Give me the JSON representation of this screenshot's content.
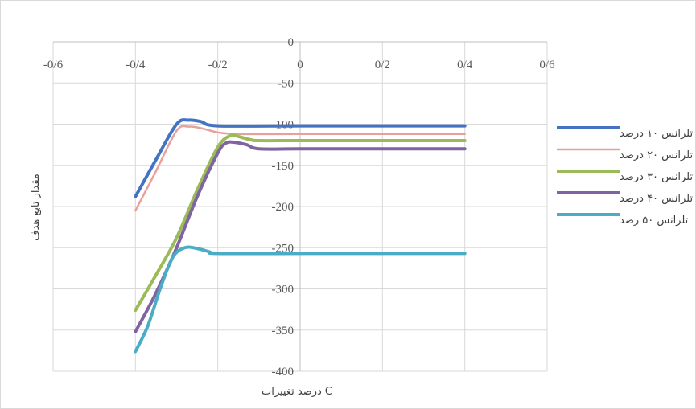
{
  "chart_data": {
    "type": "line",
    "title": "",
    "xlabel": "درصد تغییرات C",
    "ylabel": "مقدار تابع هدف",
    "xlim": [
      -0.6,
      0.6
    ],
    "ylim": [
      -400,
      0
    ],
    "x_ticks": [
      -0.6,
      -0.4,
      -0.2,
      0,
      0.2,
      0.4,
      0.6
    ],
    "x_tick_labels": [
      "-0/6",
      "-0/4",
      "-0/2",
      "0",
      "0/2",
      "0/4",
      "0/6"
    ],
    "y_ticks": [
      0,
      -50,
      -100,
      -150,
      -200,
      -250,
      -300,
      -350,
      -400
    ],
    "y_tick_labels": [
      "0",
      "-50",
      "-100",
      "-150",
      "-200",
      "-250",
      "-300",
      "-350",
      "-400"
    ],
    "x_axis_position": "top",
    "grid": true,
    "legend_position": "right",
    "series": [
      {
        "name": "تلرانس ۱۰ درصد",
        "color": "#4472C4",
        "stroke": 4,
        "points": [
          [
            -0.4,
            -188
          ],
          [
            -0.35,
            -143
          ],
          [
            -0.3,
            -100
          ],
          [
            -0.27,
            -95
          ],
          [
            -0.24,
            -97
          ],
          [
            -0.2,
            -102
          ],
          [
            0,
            -102
          ],
          [
            0.2,
            -102
          ],
          [
            0.4,
            -102
          ]
        ]
      },
      {
        "name": "تلرانس ۲۰ درصد",
        "color": "#E8A09A",
        "stroke": 2.5,
        "points": [
          [
            -0.4,
            -205
          ],
          [
            -0.35,
            -157
          ],
          [
            -0.3,
            -108
          ],
          [
            -0.27,
            -103
          ],
          [
            -0.24,
            -105
          ],
          [
            -0.2,
            -110
          ],
          [
            -0.15,
            -112
          ],
          [
            0,
            -112
          ],
          [
            0.2,
            -112
          ],
          [
            0.4,
            -112
          ]
        ]
      },
      {
        "name": "تلرانس ۳۰ درصد",
        "color": "#9BBB59",
        "stroke": 4,
        "points": [
          [
            -0.4,
            -326
          ],
          [
            -0.35,
            -283
          ],
          [
            -0.3,
            -238
          ],
          [
            -0.25,
            -180
          ],
          [
            -0.2,
            -128
          ],
          [
            -0.17,
            -114
          ],
          [
            -0.15,
            -115
          ],
          [
            -0.12,
            -119
          ],
          [
            -0.1,
            -120
          ],
          [
            0,
            -120
          ],
          [
            0.2,
            -120
          ],
          [
            0.4,
            -120
          ]
        ]
      },
      {
        "name": "تلرانس ۴۰ درصد",
        "color": "#8064A2",
        "stroke": 4,
        "points": [
          [
            -0.4,
            -352
          ],
          [
            -0.35,
            -305
          ],
          [
            -0.3,
            -250
          ],
          [
            -0.25,
            -188
          ],
          [
            -0.2,
            -135
          ],
          [
            -0.18,
            -123
          ],
          [
            -0.16,
            -122
          ],
          [
            -0.13,
            -125
          ],
          [
            -0.1,
            -130
          ],
          [
            0,
            -130
          ],
          [
            0.2,
            -130
          ],
          [
            0.4,
            -130
          ]
        ]
      },
      {
        "name": "تلرانس ۵۰ رصد",
        "color": "#4BACC6",
        "stroke": 4,
        "points": [
          [
            -0.4,
            -376
          ],
          [
            -0.37,
            -345
          ],
          [
            -0.34,
            -300
          ],
          [
            -0.31,
            -262
          ],
          [
            -0.28,
            -250
          ],
          [
            -0.25,
            -251
          ],
          [
            -0.22,
            -255
          ],
          [
            -0.2,
            -257
          ],
          [
            0,
            -257
          ],
          [
            0.2,
            -257
          ],
          [
            0.4,
            -257
          ]
        ]
      }
    ]
  }
}
